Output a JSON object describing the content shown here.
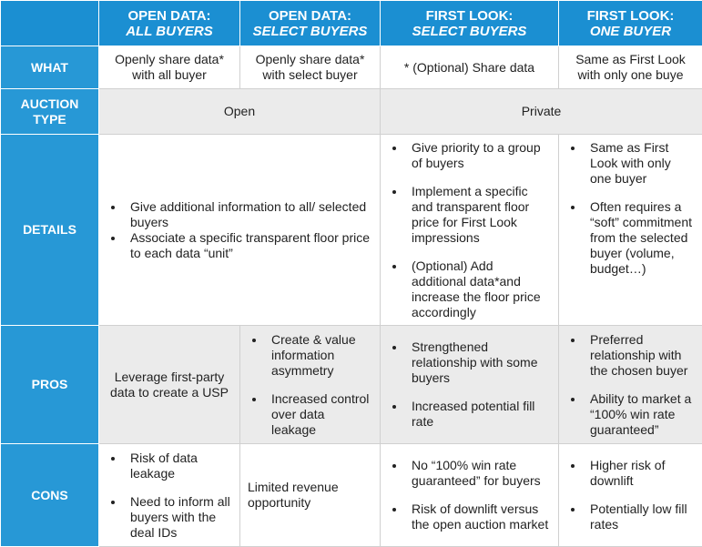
{
  "header": {
    "columns": [
      {
        "title": "OPEN DATA:",
        "subtitle": "ALL BUYERS"
      },
      {
        "title": "OPEN DATA:",
        "subtitle": "SELECT BUYERS"
      },
      {
        "title": "FIRST LOOK:",
        "subtitle": "SELECT BUYERS"
      },
      {
        "title": "FIRST LOOK:",
        "subtitle": "ONE BUYER"
      }
    ]
  },
  "rows": [
    {
      "label": "WHAT",
      "cells": [
        {
          "text": "Openly share data* with all buyer"
        },
        {
          "text": "Openly share data* with select buyer"
        },
        {
          "text": "* (Optional) Share data"
        },
        {
          "text": "Same as First Look with only one buye"
        }
      ]
    },
    {
      "label": "AUCTION TYPE",
      "cells": [
        {
          "text": "Open"
        },
        {
          "text": "Private"
        }
      ]
    },
    {
      "label": "DETAILS",
      "cells": [
        {
          "bullets": [
            "Give additional information to all/ selected buyers",
            "Associate a specific transparent floor price to each data “unit”"
          ]
        },
        {
          "bullets": [
            "Give priority to a group of buyers",
            "Implement a specific and transparent floor price for First Look impressions",
            "(Optional) Add additional data*and increase the floor price accordingly"
          ]
        },
        {
          "bullets": [
            "Same as First Look with only one buyer",
            "Often requires a “soft” commitment from the selected buyer (volume, budget…)"
          ]
        }
      ]
    },
    {
      "label": "PROS",
      "cells": [
        {
          "text": "Leverage first-party data to create a USP"
        },
        {
          "bullets": [
            "Create & value information asymmetry",
            "Increased control over data leakage"
          ]
        },
        {
          "bullets": [
            "Strengthened relationship with some buyers",
            "Increased potential fill rate"
          ]
        },
        {
          "bullets": [
            "Preferred relationship with the chosen buyer",
            "Ability to market a “100% win rate guaranteed”"
          ]
        }
      ]
    },
    {
      "label": "CONS",
      "cells": [
        {
          "bullets": [
            "Risk of data leakage",
            "Need to inform all buyers with the deal IDs"
          ]
        },
        {
          "text": "Limited revenue opportunity"
        },
        {
          "bullets": [
            "No “100% win rate guaranteed” for buyers",
            "Risk of downlift versus the open auction market"
          ]
        },
        {
          "bullets": [
            "Higher risk of downlift",
            "Potentially low fill rates"
          ]
        }
      ]
    }
  ]
}
